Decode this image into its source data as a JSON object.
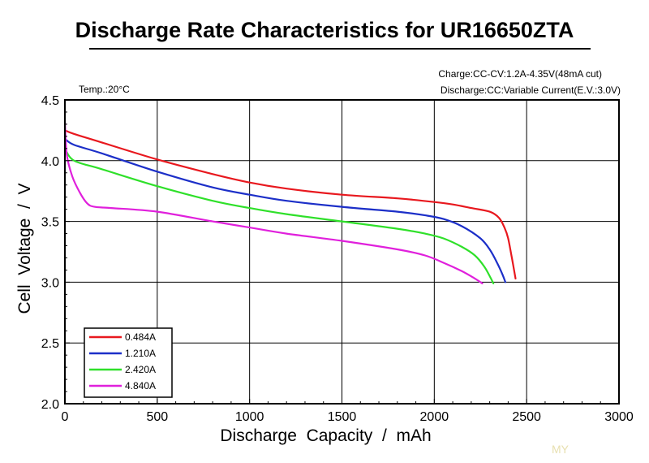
{
  "chart_data": {
    "type": "line",
    "title": "Discharge Rate Characteristics for UR16650ZTA",
    "notes": {
      "charge": "Charge:CC-CV:1.2A-4.35V(48mA  cut)",
      "discharge": "Discharge:CC:Variable  Current(E.V.:3.0V)",
      "temp": "Temp.:20°C"
    },
    "xlabel": "Discharge  Capacity  /  mAh",
    "ylabel": "Cell  Voltage  /  V",
    "xlim": [
      0,
      3000
    ],
    "ylim": [
      2.0,
      4.5
    ],
    "xticks": [
      0,
      500,
      1000,
      1500,
      2000,
      2500,
      3000
    ],
    "yticks": [
      2.0,
      2.5,
      3.0,
      3.5,
      4.0,
      4.5
    ],
    "xtick_labels": [
      "0",
      "500",
      "1000",
      "1500",
      "2000",
      "2500",
      "3000"
    ],
    "ytick_labels": [
      "2.0",
      "2.5",
      "3.0",
      "3.5",
      "4.0",
      "4.5"
    ],
    "grid": true,
    "legend_position": "bottom-left",
    "series": [
      {
        "name": "0.484A",
        "color": "#e8181e",
        "x": [
          0,
          50,
          200,
          500,
          800,
          1000,
          1200,
          1500,
          1800,
          2000,
          2100,
          2200,
          2300,
          2350,
          2380,
          2400,
          2420,
          2440
        ],
        "y": [
          4.25,
          4.22,
          4.15,
          4.01,
          3.89,
          3.82,
          3.77,
          3.72,
          3.69,
          3.66,
          3.64,
          3.61,
          3.58,
          3.53,
          3.45,
          3.36,
          3.2,
          3.03
        ]
      },
      {
        "name": "1.210A",
        "color": "#1c2fc8",
        "x": [
          0,
          50,
          200,
          500,
          800,
          1000,
          1200,
          1500,
          1800,
          1950,
          2050,
          2150,
          2250,
          2300,
          2340,
          2370,
          2385
        ],
        "y": [
          4.18,
          4.13,
          4.06,
          3.91,
          3.78,
          3.72,
          3.67,
          3.62,
          3.58,
          3.55,
          3.52,
          3.46,
          3.36,
          3.27,
          3.16,
          3.06,
          3.0
        ]
      },
      {
        "name": "2.420A",
        "color": "#2fe02a",
        "x": [
          0,
          50,
          200,
          500,
          800,
          1000,
          1200,
          1500,
          1800,
          1950,
          2050,
          2150,
          2220,
          2270,
          2300,
          2320
        ],
        "y": [
          4.1,
          4.0,
          3.93,
          3.79,
          3.67,
          3.61,
          3.56,
          3.5,
          3.44,
          3.4,
          3.36,
          3.29,
          3.22,
          3.13,
          3.05,
          2.99
        ]
      },
      {
        "name": "4.840A",
        "color": "#e020dc",
        "x": [
          0,
          10,
          40,
          80,
          120,
          160,
          250,
          500,
          800,
          1000,
          1200,
          1500,
          1800,
          1950,
          2050,
          2150,
          2220,
          2260
        ],
        "y": [
          4.32,
          4.05,
          3.87,
          3.74,
          3.65,
          3.62,
          3.61,
          3.58,
          3.5,
          3.45,
          3.4,
          3.34,
          3.27,
          3.22,
          3.16,
          3.09,
          3.03,
          2.99
        ]
      }
    ]
  },
  "watermark": "MY"
}
